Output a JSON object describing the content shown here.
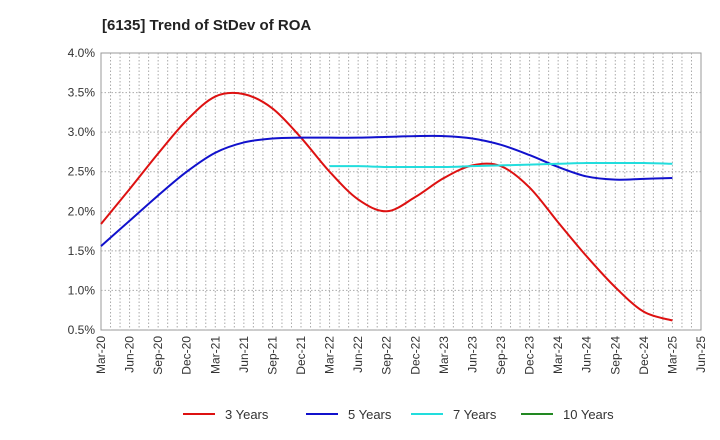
{
  "chart_data": {
    "type": "line",
    "title": "[6135]  Trend of StDev of ROA",
    "xlabel": "",
    "ylabel": "",
    "x": [
      "Mar-20",
      "Jun-20",
      "Sep-20",
      "Dec-20",
      "Mar-21",
      "Jun-21",
      "Sep-21",
      "Dec-21",
      "Mar-22",
      "Jun-22",
      "Sep-22",
      "Dec-22",
      "Mar-23",
      "Jun-23",
      "Sep-23",
      "Dec-23",
      "Mar-24",
      "Jun-24",
      "Sep-24",
      "Dec-24",
      "Mar-25",
      "Jun-25"
    ],
    "ylim": [
      0.5,
      4.0
    ],
    "yticks": [
      "0.5%",
      "1.0%",
      "1.5%",
      "2.0%",
      "2.5%",
      "3.0%",
      "3.5%",
      "4.0%"
    ],
    "ytick_values": [
      0.5,
      1.0,
      1.5,
      2.0,
      2.5,
      3.0,
      3.5,
      4.0
    ],
    "grid": true,
    "legend_position": "bottom",
    "series": [
      {
        "name": "3 Years",
        "color": "#dd1111",
        "values": [
          1.84,
          2.28,
          2.73,
          3.15,
          3.45,
          3.48,
          3.3,
          2.93,
          2.5,
          2.15,
          2.0,
          2.18,
          2.42,
          2.58,
          2.57,
          2.3,
          1.86,
          1.43,
          1.04,
          0.73,
          0.62,
          null
        ]
      },
      {
        "name": "5 Years",
        "color": "#1111cc",
        "values": [
          1.56,
          1.88,
          2.2,
          2.5,
          2.74,
          2.87,
          2.92,
          2.93,
          2.93,
          2.93,
          2.94,
          2.95,
          2.95,
          2.92,
          2.84,
          2.71,
          2.56,
          2.44,
          2.4,
          2.41,
          2.42,
          null
        ]
      },
      {
        "name": "7 Years",
        "color": "#22dddd",
        "values": [
          null,
          null,
          null,
          null,
          null,
          null,
          null,
          null,
          2.57,
          2.57,
          2.56,
          2.56,
          2.56,
          2.57,
          2.58,
          2.59,
          2.6,
          2.61,
          2.61,
          2.61,
          2.6,
          null
        ]
      },
      {
        "name": "10 Years",
        "color": "#228822",
        "values": [
          null,
          null,
          null,
          null,
          null,
          null,
          null,
          null,
          null,
          null,
          null,
          null,
          null,
          null,
          null,
          null,
          null,
          null,
          null,
          null,
          null,
          null
        ]
      }
    ]
  }
}
